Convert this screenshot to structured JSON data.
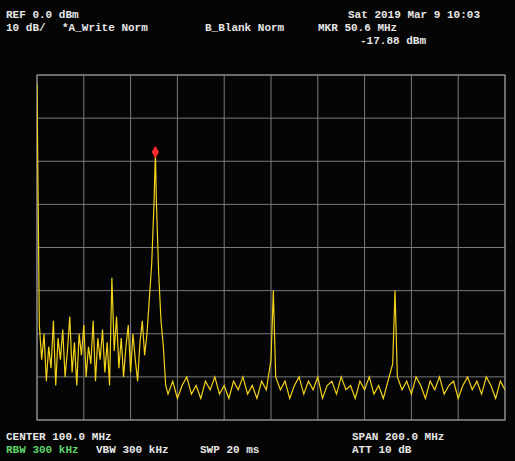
{
  "chart_data": {
    "type": "line",
    "annotations": [
      "REF 0.0 dBm",
      "10 dB/",
      "*A_Write Norm",
      "B_Blank Norm",
      "MKR 50.6 MHz",
      "-17.88 dBm",
      "Sat 2019 Mar 9 10:03",
      "CENTER 100.0 MHz",
      "SPAN 200.0 MHz",
      "RBW 300 kHz",
      "VBW 300 kHz",
      "SWP 20 ms",
      "ATT 10 dB"
    ],
    "x": [
      0,
      1,
      2,
      3,
      4,
      5,
      6,
      7,
      8,
      9,
      10,
      11,
      12,
      13,
      14,
      15,
      16,
      17,
      18,
      19,
      20,
      21,
      22,
      23,
      24,
      25,
      26,
      27,
      28,
      29,
      30,
      31,
      32,
      33,
      34,
      35,
      36,
      37,
      38,
      39,
      40,
      41,
      42,
      43,
      44,
      45,
      46,
      47,
      48,
      49,
      50,
      50.6,
      51,
      52,
      53,
      54,
      55,
      56,
      58,
      60,
      62,
      64,
      66,
      68,
      70,
      72,
      74,
      76,
      78,
      80,
      82,
      84,
      86,
      88,
      90,
      92,
      94,
      96,
      98,
      100,
      101,
      102,
      104,
      106,
      108,
      110,
      112,
      114,
      116,
      118,
      120,
      122,
      124,
      126,
      128,
      130,
      132,
      134,
      136,
      138,
      140,
      142,
      144,
      146,
      148,
      150,
      152,
      153,
      154,
      156,
      158,
      160,
      162,
      164,
      166,
      168,
      170,
      172,
      174,
      176,
      178,
      180,
      182,
      184,
      186,
      188,
      190,
      192,
      194,
      196,
      198,
      200
    ],
    "values": [
      -2,
      -58,
      -66,
      -60,
      -71,
      -63,
      -68,
      -57,
      -72,
      -61,
      -66,
      -59,
      -70,
      -64,
      -56,
      -69,
      -62,
      -72,
      -60,
      -65,
      -58,
      -70,
      -63,
      -67,
      -57,
      -71,
      -61,
      -66,
      -59,
      -69,
      -62,
      -72,
      -47,
      -64,
      -56,
      -68,
      -61,
      -70,
      -63,
      -58,
      -69,
      -60,
      -66,
      -71,
      -62,
      -57,
      -65,
      -60,
      -52,
      -44,
      -30,
      -17.88,
      -29,
      -46,
      -57,
      -63,
      -72,
      -74,
      -71,
      -75,
      -72,
      -70,
      -74,
      -72,
      -75,
      -71,
      -73,
      -70,
      -74,
      -72,
      -75,
      -71,
      -73,
      -70,
      -74,
      -72,
      -75,
      -71,
      -73,
      -66,
      -50,
      -70,
      -73,
      -71,
      -75,
      -72,
      -70,
      -74,
      -71,
      -73,
      -70,
      -75,
      -72,
      -71,
      -74,
      -70,
      -73,
      -72,
      -75,
      -71,
      -73,
      -70,
      -74,
      -72,
      -75,
      -71,
      -67,
      -50,
      -70,
      -73,
      -71,
      -74,
      -70,
      -72,
      -75,
      -71,
      -73,
      -70,
      -74,
      -72,
      -71,
      -75,
      -72,
      -70,
      -73,
      -71,
      -74,
      -70,
      -72,
      -75,
      -71,
      -73
    ],
    "color": "#f2d21a",
    "peak_marker": {
      "x": 50.6,
      "y": -17.88
    },
    "xlim": [
      0,
      200
    ],
    "xticks": [
      0,
      20,
      40,
      60,
      80,
      100,
      120,
      140,
      160,
      180,
      200
    ],
    "ylim": [
      -80,
      0
    ],
    "yticks": [
      -80,
      -70,
      -60,
      -50,
      -40,
      -30,
      -20,
      -10,
      0
    ],
    "grid": true,
    "tick_labels": false
  }
}
